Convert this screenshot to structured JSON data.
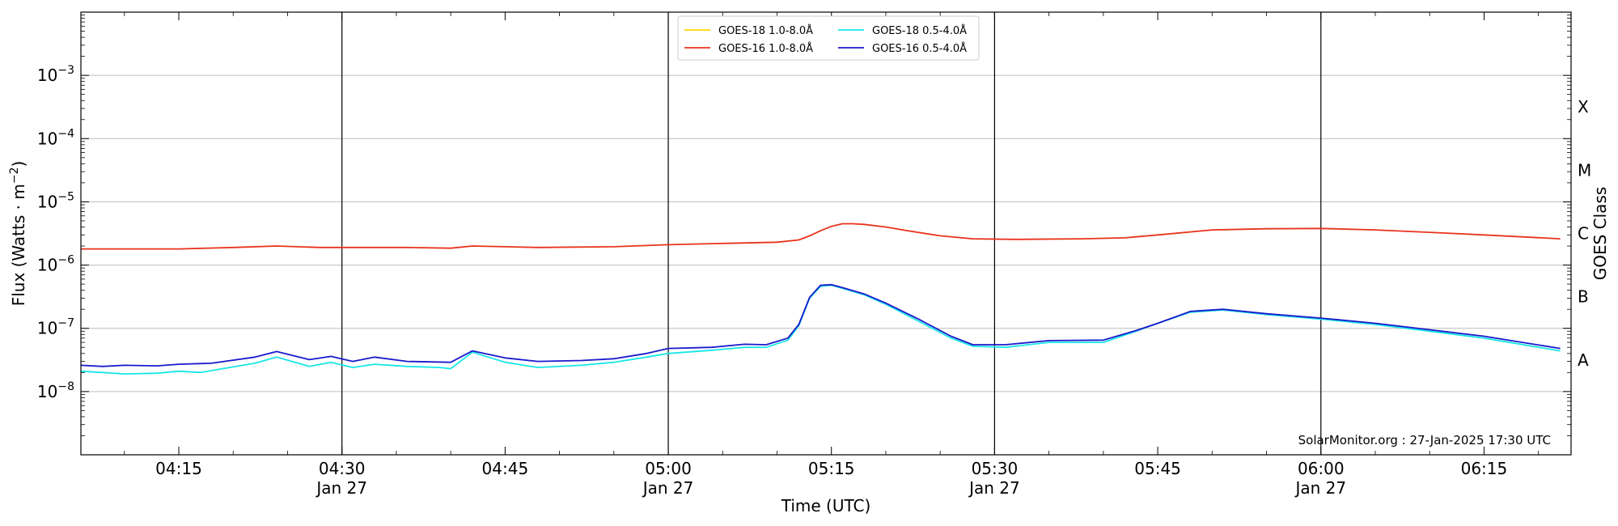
{
  "chart_data": {
    "type": "line",
    "xlabel": "Time (UTC)",
    "ylabel_main": "Flux (Watts · m",
    "ylabel_sup": "−2",
    "ylabel_close": ")",
    "ylabel_right": "GOES Class",
    "y_scale": "log",
    "xlim": [
      "04:06",
      "06:23"
    ],
    "ylim": [
      1e-09,
      0.01
    ],
    "y_ticks": [
      {
        "value": 1e-08,
        "base": "10",
        "exp": "−8"
      },
      {
        "value": 1e-07,
        "base": "10",
        "exp": "−7"
      },
      {
        "value": 1e-06,
        "base": "10",
        "exp": "−6"
      },
      {
        "value": 1e-05,
        "base": "10",
        "exp": "−5"
      },
      {
        "value": 0.0001,
        "base": "10",
        "exp": "−4"
      },
      {
        "value": 0.001,
        "base": "10",
        "exp": "−3"
      }
    ],
    "x_ticks": [
      {
        "time": "04:15",
        "label": "04:15",
        "date": ""
      },
      {
        "time": "04:30",
        "label": "04:30",
        "date": "Jan 27"
      },
      {
        "time": "04:45",
        "label": "04:45",
        "date": ""
      },
      {
        "time": "05:00",
        "label": "05:00",
        "date": "Jan 27"
      },
      {
        "time": "05:15",
        "label": "05:15",
        "date": ""
      },
      {
        "time": "05:30",
        "label": "05:30",
        "date": "Jan 27"
      },
      {
        "time": "05:45",
        "label": "05:45",
        "date": ""
      },
      {
        "time": "06:00",
        "label": "06:00",
        "date": "Jan 27"
      },
      {
        "time": "06:15",
        "label": "06:15",
        "date": ""
      }
    ],
    "vlines": [
      "04:30",
      "05:00",
      "05:30",
      "06:00"
    ],
    "goes_classes": [
      {
        "label": "A",
        "value": 3.16e-08
      },
      {
        "label": "B",
        "value": 3.16e-07
      },
      {
        "label": "C",
        "value": 3.16e-06
      },
      {
        "label": "M",
        "value": 3.16e-05
      },
      {
        "label": "X",
        "value": 0.000316
      }
    ],
    "grid": "horizontal",
    "legend_position": "top-center",
    "annotation": "SolarMonitor.org : 27-Jan-2025 17:30 UTC",
    "series": [
      {
        "name": "GOES-18 1.0-8.0Å",
        "color": "#ffd700",
        "points": []
      },
      {
        "name": "GOES-16 1.0-8.0Å",
        "color": "#e8331b",
        "points": [
          [
            "04:06",
            1.8e-06
          ],
          [
            "04:15",
            1.8e-06
          ],
          [
            "04:20",
            1.9e-06
          ],
          [
            "04:24",
            2e-06
          ],
          [
            "04:28",
            1.9e-06
          ],
          [
            "04:32",
            1.9e-06
          ],
          [
            "04:36",
            1.9e-06
          ],
          [
            "04:40",
            1.85e-06
          ],
          [
            "04:42",
            2e-06
          ],
          [
            "04:48",
            1.9e-06
          ],
          [
            "04:55",
            1.95e-06
          ],
          [
            "05:00",
            2.1e-06
          ],
          [
            "05:05",
            2.2e-06
          ],
          [
            "05:10",
            2.3e-06
          ],
          [
            "05:12",
            2.5e-06
          ],
          [
            "05:13",
            2.9e-06
          ],
          [
            "05:14",
            3.5e-06
          ],
          [
            "05:15",
            4.1e-06
          ],
          [
            "05:16",
            4.5e-06
          ],
          [
            "05:17",
            4.5e-06
          ],
          [
            "05:18",
            4.4e-06
          ],
          [
            "05:20",
            4e-06
          ],
          [
            "05:22",
            3.5e-06
          ],
          [
            "05:25",
            2.9e-06
          ],
          [
            "05:28",
            2.6e-06
          ],
          [
            "05:32",
            2.55e-06
          ],
          [
            "05:38",
            2.6e-06
          ],
          [
            "05:42",
            2.7e-06
          ],
          [
            "05:45",
            3e-06
          ],
          [
            "05:50",
            3.6e-06
          ],
          [
            "05:55",
            3.75e-06
          ],
          [
            "06:00",
            3.8e-06
          ],
          [
            "06:05",
            3.6e-06
          ],
          [
            "06:10",
            3.3e-06
          ],
          [
            "06:15",
            3e-06
          ],
          [
            "06:22",
            2.6e-06
          ]
        ]
      },
      {
        "name": "GOES-18 0.5-4.0Å",
        "color": "#19e6e6",
        "points": [
          [
            "04:06",
            2.1e-08
          ],
          [
            "04:08",
            2e-08
          ],
          [
            "04:10",
            1.9e-08
          ],
          [
            "04:13",
            1.95e-08
          ],
          [
            "04:15",
            2.1e-08
          ],
          [
            "04:17",
            2e-08
          ],
          [
            "04:19",
            2.3e-08
          ],
          [
            "04:22",
            2.8e-08
          ],
          [
            "04:24",
            3.5e-08
          ],
          [
            "04:27",
            2.5e-08
          ],
          [
            "04:29",
            2.9e-08
          ],
          [
            "04:31",
            2.4e-08
          ],
          [
            "04:33",
            2.7e-08
          ],
          [
            "04:36",
            2.5e-08
          ],
          [
            "04:39",
            2.4e-08
          ],
          [
            "04:40",
            2.3e-08
          ],
          [
            "04:42",
            4.2e-08
          ],
          [
            "04:45",
            2.9e-08
          ],
          [
            "04:48",
            2.4e-08
          ],
          [
            "04:52",
            2.6e-08
          ],
          [
            "04:55",
            2.9e-08
          ],
          [
            "04:58",
            3.5e-08
          ],
          [
            "05:00",
            4e-08
          ],
          [
            "05:04",
            4.5e-08
          ],
          [
            "05:07",
            5e-08
          ],
          [
            "05:09",
            5e-08
          ],
          [
            "05:11",
            6.5e-08
          ],
          [
            "05:12",
            1.1e-07
          ],
          [
            "05:13",
            3e-07
          ],
          [
            "05:14",
            4.6e-07
          ],
          [
            "05:15",
            4.8e-07
          ],
          [
            "05:16",
            4.3e-07
          ],
          [
            "05:18",
            3.4e-07
          ],
          [
            "05:20",
            2.4e-07
          ],
          [
            "05:23",
            1.3e-07
          ],
          [
            "05:26",
            7e-08
          ],
          [
            "05:28",
            5.2e-08
          ],
          [
            "05:31",
            5e-08
          ],
          [
            "05:35",
            6e-08
          ],
          [
            "05:40",
            6e-08
          ],
          [
            "05:43",
            9e-08
          ],
          [
            "05:45",
            1.2e-07
          ],
          [
            "05:48",
            1.8e-07
          ],
          [
            "05:51",
            1.95e-07
          ],
          [
            "05:55",
            1.65e-07
          ],
          [
            "06:00",
            1.4e-07
          ],
          [
            "06:05",
            1.15e-07
          ],
          [
            "06:10",
            9e-08
          ],
          [
            "06:15",
            7e-08
          ],
          [
            "06:22",
            4.4e-08
          ]
        ]
      },
      {
        "name": "GOES-16 0.5-4.0Å",
        "color": "#1a1acc",
        "points": [
          [
            "04:06",
            2.6e-08
          ],
          [
            "04:08",
            2.5e-08
          ],
          [
            "04:10",
            2.6e-08
          ],
          [
            "04:13",
            2.55e-08
          ],
          [
            "04:15",
            2.7e-08
          ],
          [
            "04:18",
            2.8e-08
          ],
          [
            "04:22",
            3.5e-08
          ],
          [
            "04:24",
            4.3e-08
          ],
          [
            "04:27",
            3.2e-08
          ],
          [
            "04:29",
            3.6e-08
          ],
          [
            "04:31",
            3e-08
          ],
          [
            "04:33",
            3.5e-08
          ],
          [
            "04:36",
            3e-08
          ],
          [
            "04:40",
            2.9e-08
          ],
          [
            "04:42",
            4.4e-08
          ],
          [
            "04:45",
            3.4e-08
          ],
          [
            "04:48",
            3e-08
          ],
          [
            "04:52",
            3.1e-08
          ],
          [
            "04:55",
            3.3e-08
          ],
          [
            "04:58",
            4e-08
          ],
          [
            "05:00",
            4.8e-08
          ],
          [
            "05:04",
            5e-08
          ],
          [
            "05:07",
            5.6e-08
          ],
          [
            "05:09",
            5.5e-08
          ],
          [
            "05:11",
            7e-08
          ],
          [
            "05:12",
            1.15e-07
          ],
          [
            "05:13",
            3.1e-07
          ],
          [
            "05:14",
            4.8e-07
          ],
          [
            "05:15",
            4.9e-07
          ],
          [
            "05:16",
            4.4e-07
          ],
          [
            "05:18",
            3.5e-07
          ],
          [
            "05:20",
            2.5e-07
          ],
          [
            "05:23",
            1.4e-07
          ],
          [
            "05:26",
            7.5e-08
          ],
          [
            "05:28",
            5.5e-08
          ],
          [
            "05:31",
            5.5e-08
          ],
          [
            "05:35",
            6.4e-08
          ],
          [
            "05:40",
            6.5e-08
          ],
          [
            "05:43",
            9.2e-08
          ],
          [
            "05:45",
            1.2e-07
          ],
          [
            "05:48",
            1.85e-07
          ],
          [
            "05:51",
            2e-07
          ],
          [
            "05:55",
            1.7e-07
          ],
          [
            "06:00",
            1.45e-07
          ],
          [
            "06:05",
            1.2e-07
          ],
          [
            "06:10",
            9.5e-08
          ],
          [
            "06:15",
            7.5e-08
          ],
          [
            "06:22",
            4.8e-08
          ]
        ]
      }
    ]
  }
}
